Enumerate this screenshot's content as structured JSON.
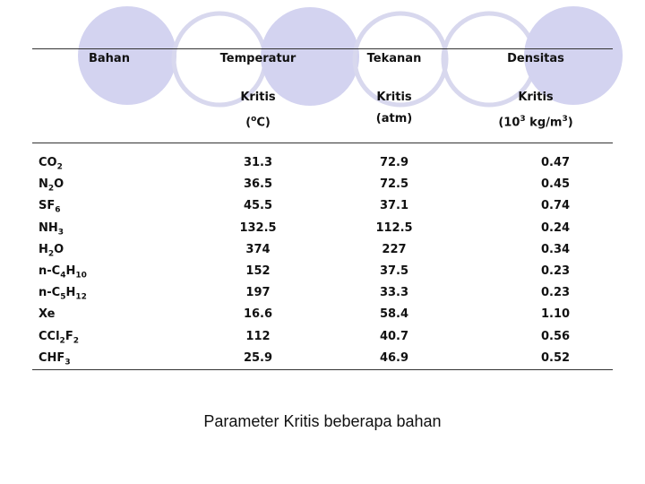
{
  "colors": {
    "circle_fill": "#d3d3f0",
    "circle_stroke": "#d8d8ee",
    "text": "#111111"
  },
  "header": {
    "row1": [
      "Bahan",
      "Temperatur",
      "Tekanan",
      "Densitas"
    ],
    "row2": [
      "Kritis",
      "Kritis",
      "Kritis"
    ],
    "row3": {
      "temp": {
        "pre": "(",
        "sup": "o",
        "post": "C)"
      },
      "pressure": "(atm)",
      "density": {
        "pre": "(10",
        "sup": "3",
        "mid": " kg/m",
        "sup2": "3",
        "post": ")"
      }
    }
  },
  "rows": [
    {
      "formula": [
        {
          "t": "CO"
        },
        {
          "t": "2",
          "sub": true
        }
      ],
      "temperature": "31.3",
      "pressure": "72.9",
      "density": "0.47"
    },
    {
      "formula": [
        {
          "t": "N"
        },
        {
          "t": "2",
          "sub": true
        },
        {
          "t": "O"
        }
      ],
      "temperature": "36.5",
      "pressure": "72.5",
      "density": "0.45"
    },
    {
      "formula": [
        {
          "t": "SF"
        },
        {
          "t": "6",
          "sub": true
        }
      ],
      "temperature": "45.5",
      "pressure": "37.1",
      "density": "0.74"
    },
    {
      "formula": [
        {
          "t": "NH"
        },
        {
          "t": "3",
          "sub": true
        }
      ],
      "temperature": "132.5",
      "pressure": "112.5",
      "density": "0.24"
    },
    {
      "formula": [
        {
          "t": "H"
        },
        {
          "t": "2",
          "sub": true
        },
        {
          "t": "O"
        }
      ],
      "temperature": "374",
      "pressure": "227",
      "density": "0.34"
    },
    {
      "formula": [
        {
          "t": "n-C"
        },
        {
          "t": "4",
          "sub": true
        },
        {
          "t": "H"
        },
        {
          "t": "10",
          "sub": true
        }
      ],
      "temperature": "152",
      "pressure": "37.5",
      "density": "0.23"
    },
    {
      "formula": [
        {
          "t": "n-C"
        },
        {
          "t": "5",
          "sub": true
        },
        {
          "t": "H"
        },
        {
          "t": "12",
          "sub": true
        }
      ],
      "temperature": "197",
      "pressure": "33.3",
      "density": "0.23"
    },
    {
      "formula": [
        {
          "t": "Xe"
        }
      ],
      "temperature": "16.6",
      "pressure": "58.4",
      "density": "1.10"
    },
    {
      "formula": [
        {
          "t": "CCl"
        },
        {
          "t": "2",
          "sub": true
        },
        {
          "t": "F"
        },
        {
          "t": "2",
          "sub": true
        }
      ],
      "temperature": "112",
      "pressure": "40.7",
      "density": "0.56"
    },
    {
      "formula": [
        {
          "t": "CHF"
        },
        {
          "t": "3",
          "sub": true
        }
      ],
      "temperature": "25.9",
      "pressure": "46.9",
      "density": "0.52"
    }
  ],
  "caption": "Parameter Kritis beberapa bahan"
}
